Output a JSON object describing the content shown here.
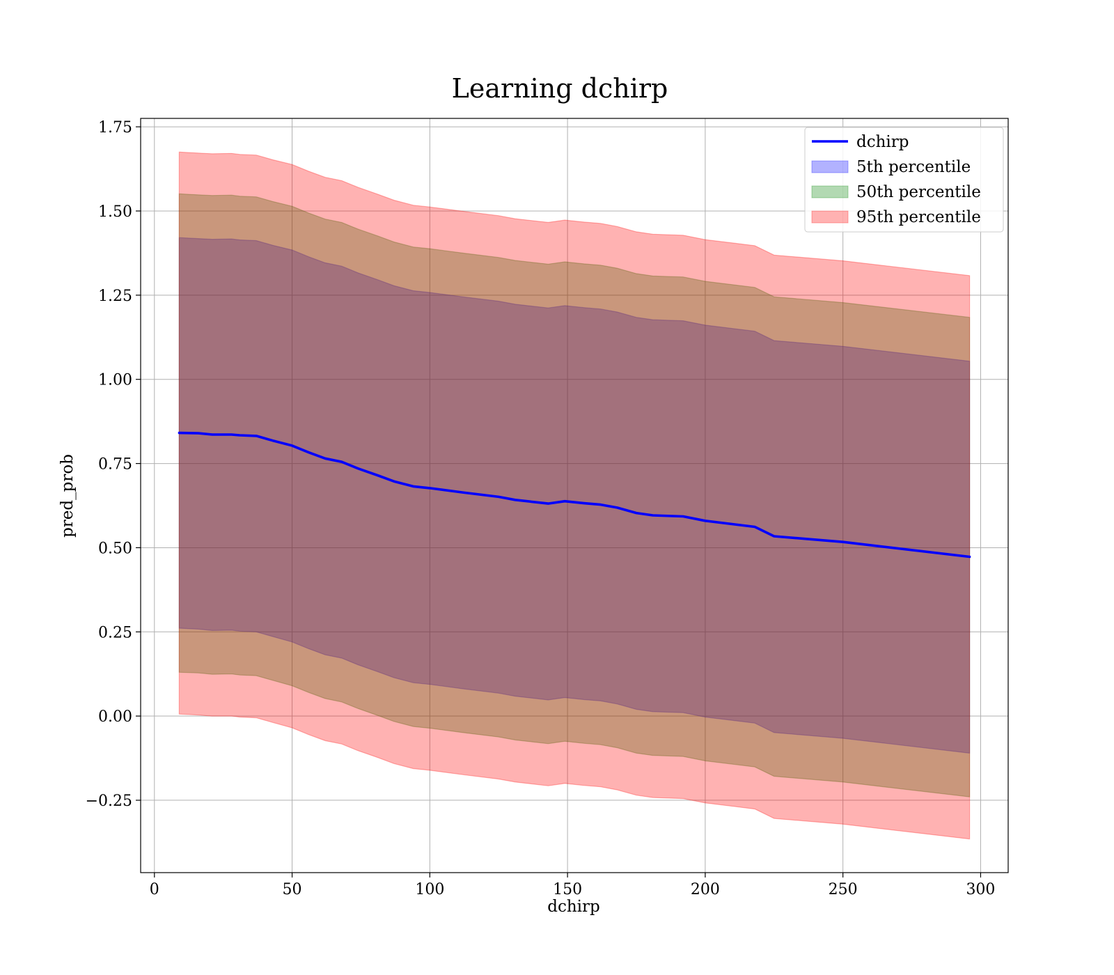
{
  "chart_data": {
    "type": "line",
    "title": "Learning dchirp",
    "xlabel": "dchirp",
    "ylabel": "pred_prob",
    "xlim": [
      -5,
      310
    ],
    "ylim": [
      -0.465,
      1.775
    ],
    "xticks": [
      0,
      50,
      100,
      150,
      200,
      250,
      300
    ],
    "xtick_labels": [
      "0",
      "50",
      "100",
      "150",
      "200",
      "250",
      "300"
    ],
    "yticks": [
      -0.25,
      0,
      0.25,
      0.5,
      0.75,
      1.0,
      1.25,
      1.5,
      1.75
    ],
    "ytick_labels": [
      "−0.25",
      "0.00",
      "0.25",
      "0.50",
      "0.75",
      "1.00",
      "1.25",
      "1.50",
      "1.75"
    ],
    "grid": true,
    "legend_position": "top-right",
    "x": [
      9,
      16,
      21,
      28,
      31,
      37,
      43,
      50,
      56,
      62,
      68,
      74,
      81,
      87,
      94,
      100,
      112,
      125,
      131,
      143,
      149,
      156,
      162,
      168,
      175,
      181,
      192,
      200,
      211,
      218,
      225,
      250,
      296
    ],
    "series": [
      {
        "name": "dchirp",
        "kind": "line",
        "color": "#0000ff",
        "values": [
          0.841,
          0.84,
          0.836,
          0.836,
          0.834,
          0.832,
          0.818,
          0.803,
          0.783,
          0.765,
          0.755,
          0.735,
          0.715,
          0.697,
          0.682,
          0.677,
          0.664,
          0.651,
          0.642,
          0.631,
          0.638,
          0.632,
          0.628,
          0.619,
          0.603,
          0.596,
          0.593,
          0.58,
          0.569,
          0.562,
          0.534,
          0.517,
          0.473
        ]
      },
      {
        "name": "5th percentile",
        "kind": "band",
        "color": "#0000ff",
        "lower": [
          0.261,
          0.258,
          0.254,
          0.255,
          0.252,
          0.25,
          0.236,
          0.22,
          0.2,
          0.182,
          0.172,
          0.152,
          0.132,
          0.114,
          0.099,
          0.094,
          0.081,
          0.068,
          0.059,
          0.048,
          0.055,
          0.049,
          0.045,
          0.036,
          0.02,
          0.013,
          0.01,
          -0.003,
          -0.014,
          -0.021,
          -0.049,
          -0.066,
          -0.11
        ],
        "upper": [
          1.421,
          1.418,
          1.416,
          1.417,
          1.414,
          1.412,
          1.398,
          1.384,
          1.364,
          1.346,
          1.336,
          1.316,
          1.296,
          1.278,
          1.263,
          1.258,
          1.245,
          1.232,
          1.223,
          1.212,
          1.219,
          1.213,
          1.209,
          1.2,
          1.184,
          1.177,
          1.174,
          1.161,
          1.15,
          1.143,
          1.115,
          1.098,
          1.054
        ]
      },
      {
        "name": "50th percentile",
        "kind": "band",
        "color": "#008000",
        "lower": [
          0.13,
          0.128,
          0.124,
          0.125,
          0.122,
          0.12,
          0.106,
          0.09,
          0.07,
          0.052,
          0.042,
          0.022,
          0.002,
          -0.016,
          -0.031,
          -0.036,
          -0.049,
          -0.062,
          -0.071,
          -0.082,
          -0.075,
          -0.081,
          -0.085,
          -0.094,
          -0.11,
          -0.117,
          -0.12,
          -0.133,
          -0.144,
          -0.151,
          -0.179,
          -0.196,
          -0.24
        ],
        "upper": [
          1.551,
          1.548,
          1.546,
          1.547,
          1.544,
          1.542,
          1.528,
          1.514,
          1.494,
          1.476,
          1.466,
          1.446,
          1.426,
          1.408,
          1.393,
          1.388,
          1.375,
          1.362,
          1.353,
          1.342,
          1.349,
          1.343,
          1.339,
          1.33,
          1.314,
          1.307,
          1.304,
          1.291,
          1.28,
          1.273,
          1.245,
          1.228,
          1.184
        ]
      },
      {
        "name": "95th percentile",
        "kind": "band",
        "color": "#ff0000",
        "lower": [
          0.006,
          0.003,
          0.0,
          0.0,
          -0.003,
          -0.005,
          -0.019,
          -0.035,
          -0.055,
          -0.073,
          -0.083,
          -0.103,
          -0.123,
          -0.141,
          -0.156,
          -0.161,
          -0.174,
          -0.187,
          -0.196,
          -0.207,
          -0.2,
          -0.206,
          -0.21,
          -0.219,
          -0.235,
          -0.242,
          -0.245,
          -0.258,
          -0.269,
          -0.276,
          -0.304,
          -0.321,
          -0.365
        ],
        "upper": [
          1.675,
          1.672,
          1.67,
          1.671,
          1.668,
          1.666,
          1.652,
          1.638,
          1.618,
          1.6,
          1.59,
          1.57,
          1.55,
          1.532,
          1.517,
          1.512,
          1.499,
          1.486,
          1.477,
          1.466,
          1.473,
          1.467,
          1.463,
          1.454,
          1.438,
          1.431,
          1.428,
          1.415,
          1.404,
          1.397,
          1.369,
          1.352,
          1.308
        ]
      }
    ]
  }
}
